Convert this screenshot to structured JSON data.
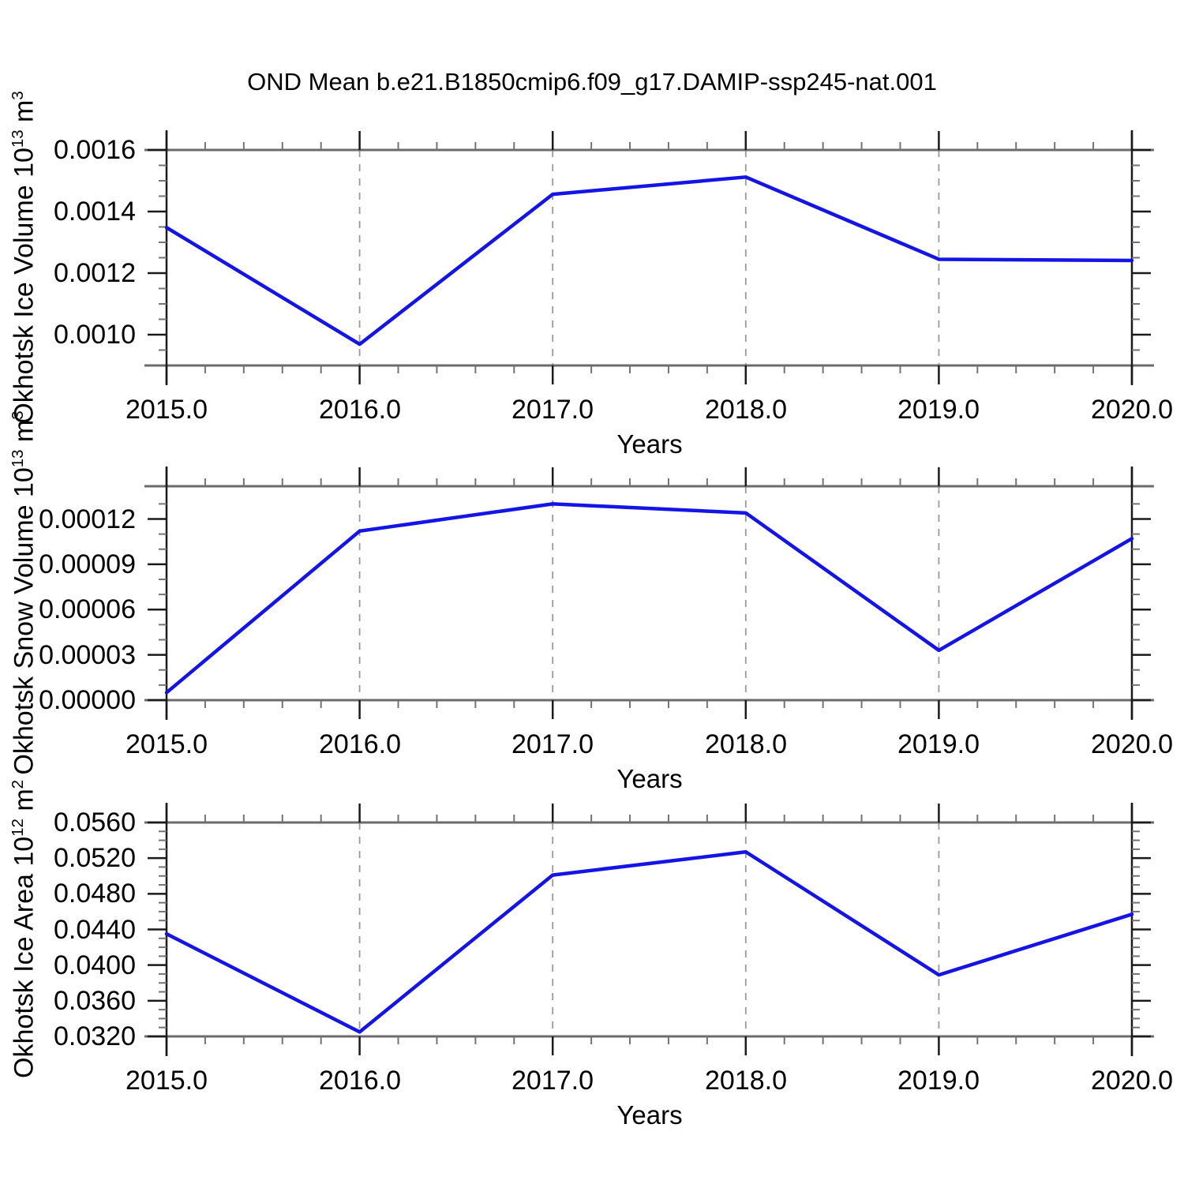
{
  "title": "OND Mean b.e21.B1850cmip6.f09_g17.DAMIP-ssp245-nat.001",
  "style": {
    "line_color": "#1414e6",
    "frame_color": "#6b6b6b",
    "spine_color": "#1a1a1a",
    "major_tick_color": "#1a1a1a",
    "minor_tick_color": "#737373",
    "gridline_color": "#9a9a9a",
    "text_color": "#000000",
    "background": "#ffffff"
  },
  "x_axis": {
    "label": "Years",
    "min": 2015,
    "max": 2020,
    "ticks": [
      2015,
      2016,
      2017,
      2018,
      2019,
      2020
    ],
    "tick_labels": [
      "2015.0",
      "2016.0",
      "2017.0",
      "2018.0",
      "2019.0",
      "2020.0"
    ],
    "minor_step": 0.2,
    "gridlines": [
      2016,
      2017,
      2018,
      2019
    ],
    "grid_style": "dashed"
  },
  "chart_data": [
    {
      "type": "line",
      "series_name": "okhotsk-ice-volume",
      "xlabel": "Years",
      "ylabel_text": "Okhotsk Ice Volume 10^13 m^3",
      "ylabel_prefix": "Okhotsk Ice Volume 10",
      "ylabel_sup1": "13",
      "ylabel_mid": " m",
      "ylabel_sup2": "3",
      "x": [
        2015,
        2016,
        2017,
        2018,
        2019,
        2020
      ],
      "values": [
        0.001348,
        0.000969,
        0.001456,
        0.001512,
        0.001245,
        0.001241
      ],
      "ylim": [
        0.0009,
        0.0016
      ],
      "y_ticks": [
        0.001,
        0.0012,
        0.0014,
        0.0016
      ],
      "y_tick_labels": [
        "0.0010",
        "0.0012",
        "0.0014",
        "0.0016"
      ],
      "y_minor_step": 5e-05
    },
    {
      "type": "line",
      "series_name": "okhotsk-snow-volume",
      "xlabel": "Years",
      "ylabel_text": "Okhotsk Snow Volume 10^13 m^3",
      "ylabel_prefix": "Okhotsk Snow Volume 10",
      "ylabel_sup1": "13",
      "ylabel_mid": " m",
      "ylabel_sup2": "3",
      "x": [
        2015,
        2016,
        2017,
        2018,
        2019,
        2020
      ],
      "values": [
        5e-06,
        0.000112,
        0.00013,
        0.000124,
        3.3e-05,
        0.000107
      ],
      "ylim": [
        0,
        0.0001417
      ],
      "y_ticks": [
        0,
        3e-05,
        6e-05,
        9e-05,
        0.00012
      ],
      "y_tick_labels": [
        "0.00000",
        "0.00003",
        "0.00006",
        "0.00009",
        "0.00012"
      ],
      "y_minor_step": 1e-05
    },
    {
      "type": "line",
      "series_name": "okhotsk-ice-area",
      "xlabel": "Years",
      "ylabel_text": "Okhotsk Ice Area 10^12 m^2",
      "ylabel_prefix": "Okhotsk Ice Area 10",
      "ylabel_sup1": "12",
      "ylabel_mid": " m",
      "ylabel_sup2": "2",
      "x": [
        2015,
        2016,
        2017,
        2018,
        2019,
        2020
      ],
      "values": [
        0.0435,
        0.0325,
        0.0501,
        0.0527,
        0.0389,
        0.0457
      ],
      "ylim": [
        0.032,
        0.056
      ],
      "y_ticks": [
        0.032,
        0.036,
        0.04,
        0.044,
        0.048,
        0.052,
        0.056
      ],
      "y_tick_labels": [
        "0.0320",
        "0.0360",
        "0.0400",
        "0.0440",
        "0.0480",
        "0.0520",
        "0.0560"
      ],
      "y_minor_step": 0.001
    }
  ]
}
